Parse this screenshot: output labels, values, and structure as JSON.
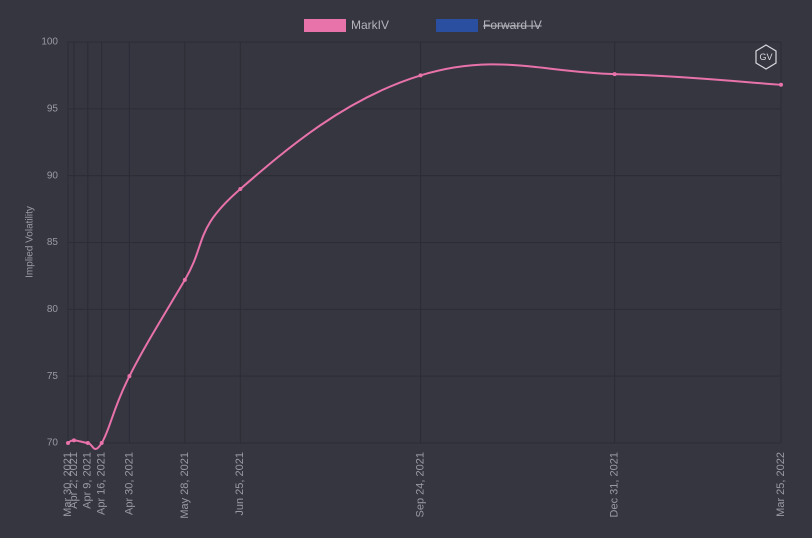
{
  "chart_data": {
    "type": "line",
    "y_label": "Implied Volatility",
    "watermark": "GV",
    "x": [
      "Mar 30, 2021",
      "Apr 2, 2021",
      "Apr 9, 2021",
      "Apr 16, 2021",
      "Apr 30, 2021",
      "May 28, 2021",
      "Jun 25, 2021",
      "Sep 24, 2021",
      "Dec 31, 2021",
      "Mar 25, 2022"
    ],
    "xlim": [
      "Mar 30, 2021",
      "Mar 25, 2022"
    ],
    "series": [
      {
        "name": "MarkIV",
        "color": "#e872aa",
        "hidden": false,
        "values": [
          70.0,
          70.2,
          70.0,
          70.0,
          75.0,
          82.2,
          89.0,
          97.5,
          97.6,
          96.8
        ]
      },
      {
        "name": "Forward IV",
        "color": "#2b4fa0",
        "hidden": true,
        "values": [
          null,
          null,
          null,
          null,
          null,
          null,
          null,
          null,
          null,
          null
        ]
      }
    ],
    "ylim": [
      70,
      100
    ],
    "yticks": [
      70,
      75,
      80,
      85,
      90,
      95,
      100
    ],
    "grid": true,
    "legend": "top"
  }
}
